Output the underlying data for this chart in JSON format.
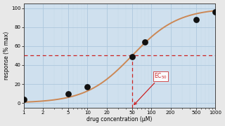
{
  "points_x": [
    1,
    5,
    10,
    50,
    80,
    500,
    1000
  ],
  "points_y": [
    4,
    10,
    17,
    49,
    64,
    88,
    96
  ],
  "ec50": 50,
  "hill_n": 1.2,
  "emax": 100,
  "xlabel": "drug concentration (μM)",
  "ylabel": "response (% max)",
  "xlim": [
    1,
    1000
  ],
  "ylim": [
    -5,
    105
  ],
  "curve_color": "#cc8855",
  "point_color": "#111111",
  "dashed_color": "#cc2222",
  "bg_color": "#cfe0ee",
  "fig_bg_color": "#e8e8e8",
  "grid_major_color": "#adc8dd",
  "grid_minor_color": "#c4d8e8",
  "annotation_text": "EC$_{50}$",
  "annotation_color": "#cc2222",
  "xticks": [
    1,
    2,
    5,
    10,
    20,
    50,
    100,
    200,
    500,
    1000
  ],
  "yticks": [
    0,
    20,
    40,
    60,
    80,
    100
  ]
}
